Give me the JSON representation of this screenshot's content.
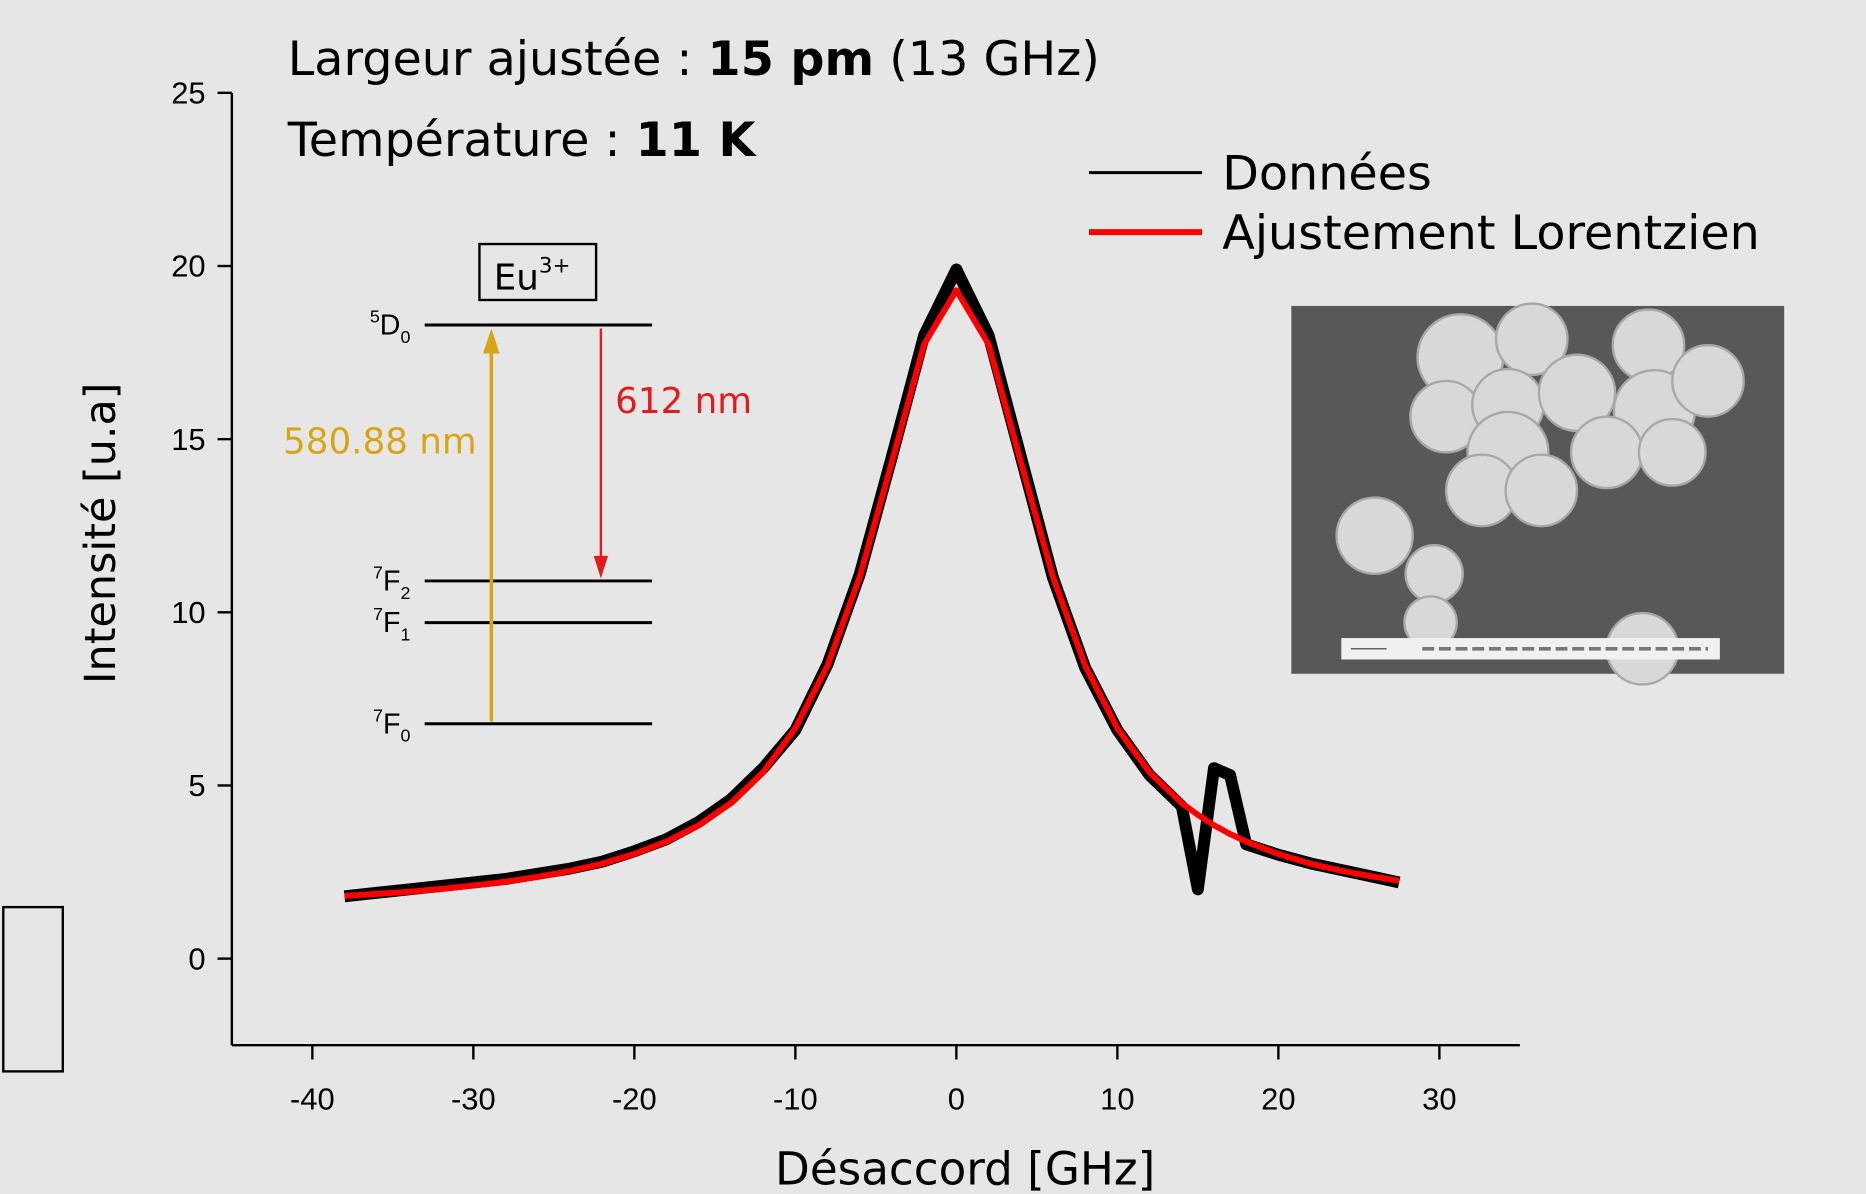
{
  "chart_data": {
    "type": "line",
    "annotations": {
      "width": [
        "Largeur ajustée :",
        "15 pm",
        "(13 GHz)"
      ],
      "temperature": [
        "Température :",
        "11 K"
      ]
    },
    "xlabel": "Désaccord [GHz]",
    "ylabel": "Intensité [u.a]",
    "x": [
      -38,
      -36,
      -34,
      -32,
      -30,
      -28,
      -26,
      -24,
      -22,
      -20,
      -18,
      -16,
      -14,
      -12,
      -10,
      -8,
      -6,
      -4,
      -2,
      0,
      2,
      4,
      6,
      8,
      10,
      12,
      14,
      15,
      16,
      17,
      18,
      20,
      22,
      24,
      26,
      27.5
    ],
    "series": [
      {
        "name": "Données",
        "color": "#000000",
        "values": [
          1.8,
          1.9,
          2.0,
          2.1,
          2.2,
          2.3,
          2.45,
          2.6,
          2.8,
          3.1,
          3.45,
          3.95,
          4.6,
          5.5,
          6.6,
          8.5,
          11.1,
          14.5,
          18.0,
          19.9,
          18.0,
          14.5,
          11.0,
          8.4,
          6.6,
          5.3,
          4.4,
          2.0,
          5.5,
          5.3,
          3.3,
          3.0,
          2.75,
          2.55,
          2.35,
          2.2
        ]
      },
      {
        "name": "Ajustement Lorentzien",
        "color": "#ff0000",
        "values": [
          1.81,
          1.87,
          1.93,
          2.01,
          2.11,
          2.22,
          2.36,
          2.53,
          2.74,
          3.02,
          3.38,
          3.85,
          4.49,
          5.38,
          6.65,
          8.46,
          11.02,
          14.35,
          17.74,
          19.3,
          17.74,
          14.35,
          11.02,
          8.46,
          6.65,
          5.38,
          4.49,
          4.15,
          3.85,
          3.6,
          3.38,
          3.02,
          2.74,
          2.53,
          2.36,
          2.25
        ]
      }
    ],
    "xlim": [
      -45,
      35
    ],
    "ylim": [
      -2.5,
      25
    ],
    "xticks": [
      -40,
      -30,
      -20,
      -10,
      0,
      10,
      20,
      30
    ],
    "yticks": [
      0,
      5,
      10,
      15,
      20,
      25
    ],
    "legend": "upper right",
    "energy_diagram": {
      "ion": {
        "base": "Eu",
        "sup": "3+"
      },
      "levels": [
        {
          "sup": "5",
          "letter": "D",
          "sub": "0"
        },
        {
          "sup": "7",
          "letter": "F",
          "sub": "2"
        },
        {
          "sup": "7",
          "letter": "F",
          "sub": "1"
        },
        {
          "sup": "7",
          "letter": "F",
          "sub": "0"
        }
      ],
      "transitions": [
        {
          "label": "580.88 nm",
          "color": "#d9a514"
        },
        {
          "label": "612 nm",
          "color": "#e31b1b"
        }
      ]
    }
  }
}
